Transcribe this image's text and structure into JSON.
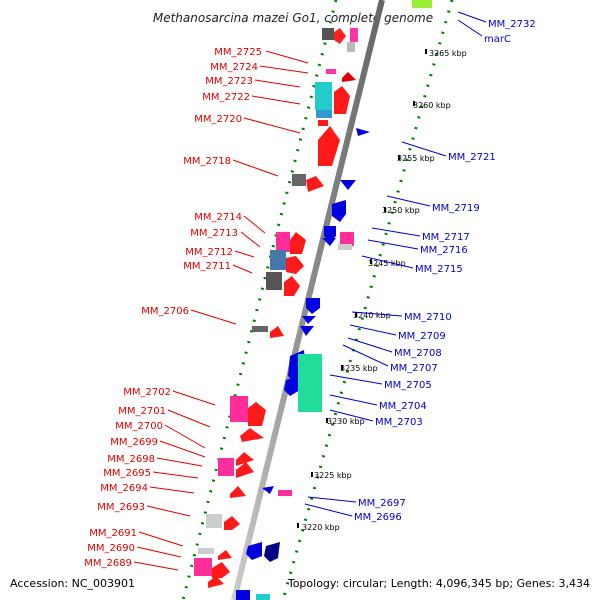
{
  "title": "Methanosarcina mazei Go1, complete genome",
  "footer": {
    "accession": "Accession: NC_003901",
    "topology": "Topology: circular; Length: 4,096,345 bp; Genes: 3,434"
  },
  "colors": {
    "forward": "#e00000",
    "reverse": "#0000cc",
    "scale_ticks": "#008000"
  },
  "scale_labels": [
    "3265 kbp",
    "3260 kbp",
    "3255 kbp",
    "3250 kbp",
    "3245 kbp",
    "3240 kbp",
    "3235 kbp",
    "3230 kbp",
    "3225 kbp",
    "3220 kbp"
  ],
  "left_genes": [
    "MM_2725",
    "MM_2724",
    "MM_2723",
    "MM_2722",
    "MM_2720",
    "MM_2718",
    "MM_2714",
    "MM_2713",
    "MM_2712",
    "MM_2711",
    "MM_2706",
    "MM_2702",
    "MM_2701",
    "MM_2700",
    "MM_2699",
    "MM_2698",
    "MM_2695",
    "MM_2694",
    "MM_2693",
    "MM_2691",
    "MM_2690",
    "MM_2689"
  ],
  "right_genes": [
    "MM_2732",
    "marC",
    "MM_2721",
    "MM_2719",
    "MM_2717",
    "MM_2716",
    "MM_2715",
    "MM_2710",
    "MM_2709",
    "MM_2708",
    "MM_2707",
    "MM_2705",
    "MM_2704",
    "MM_2703",
    "MM_2697",
    "MM_2696"
  ]
}
